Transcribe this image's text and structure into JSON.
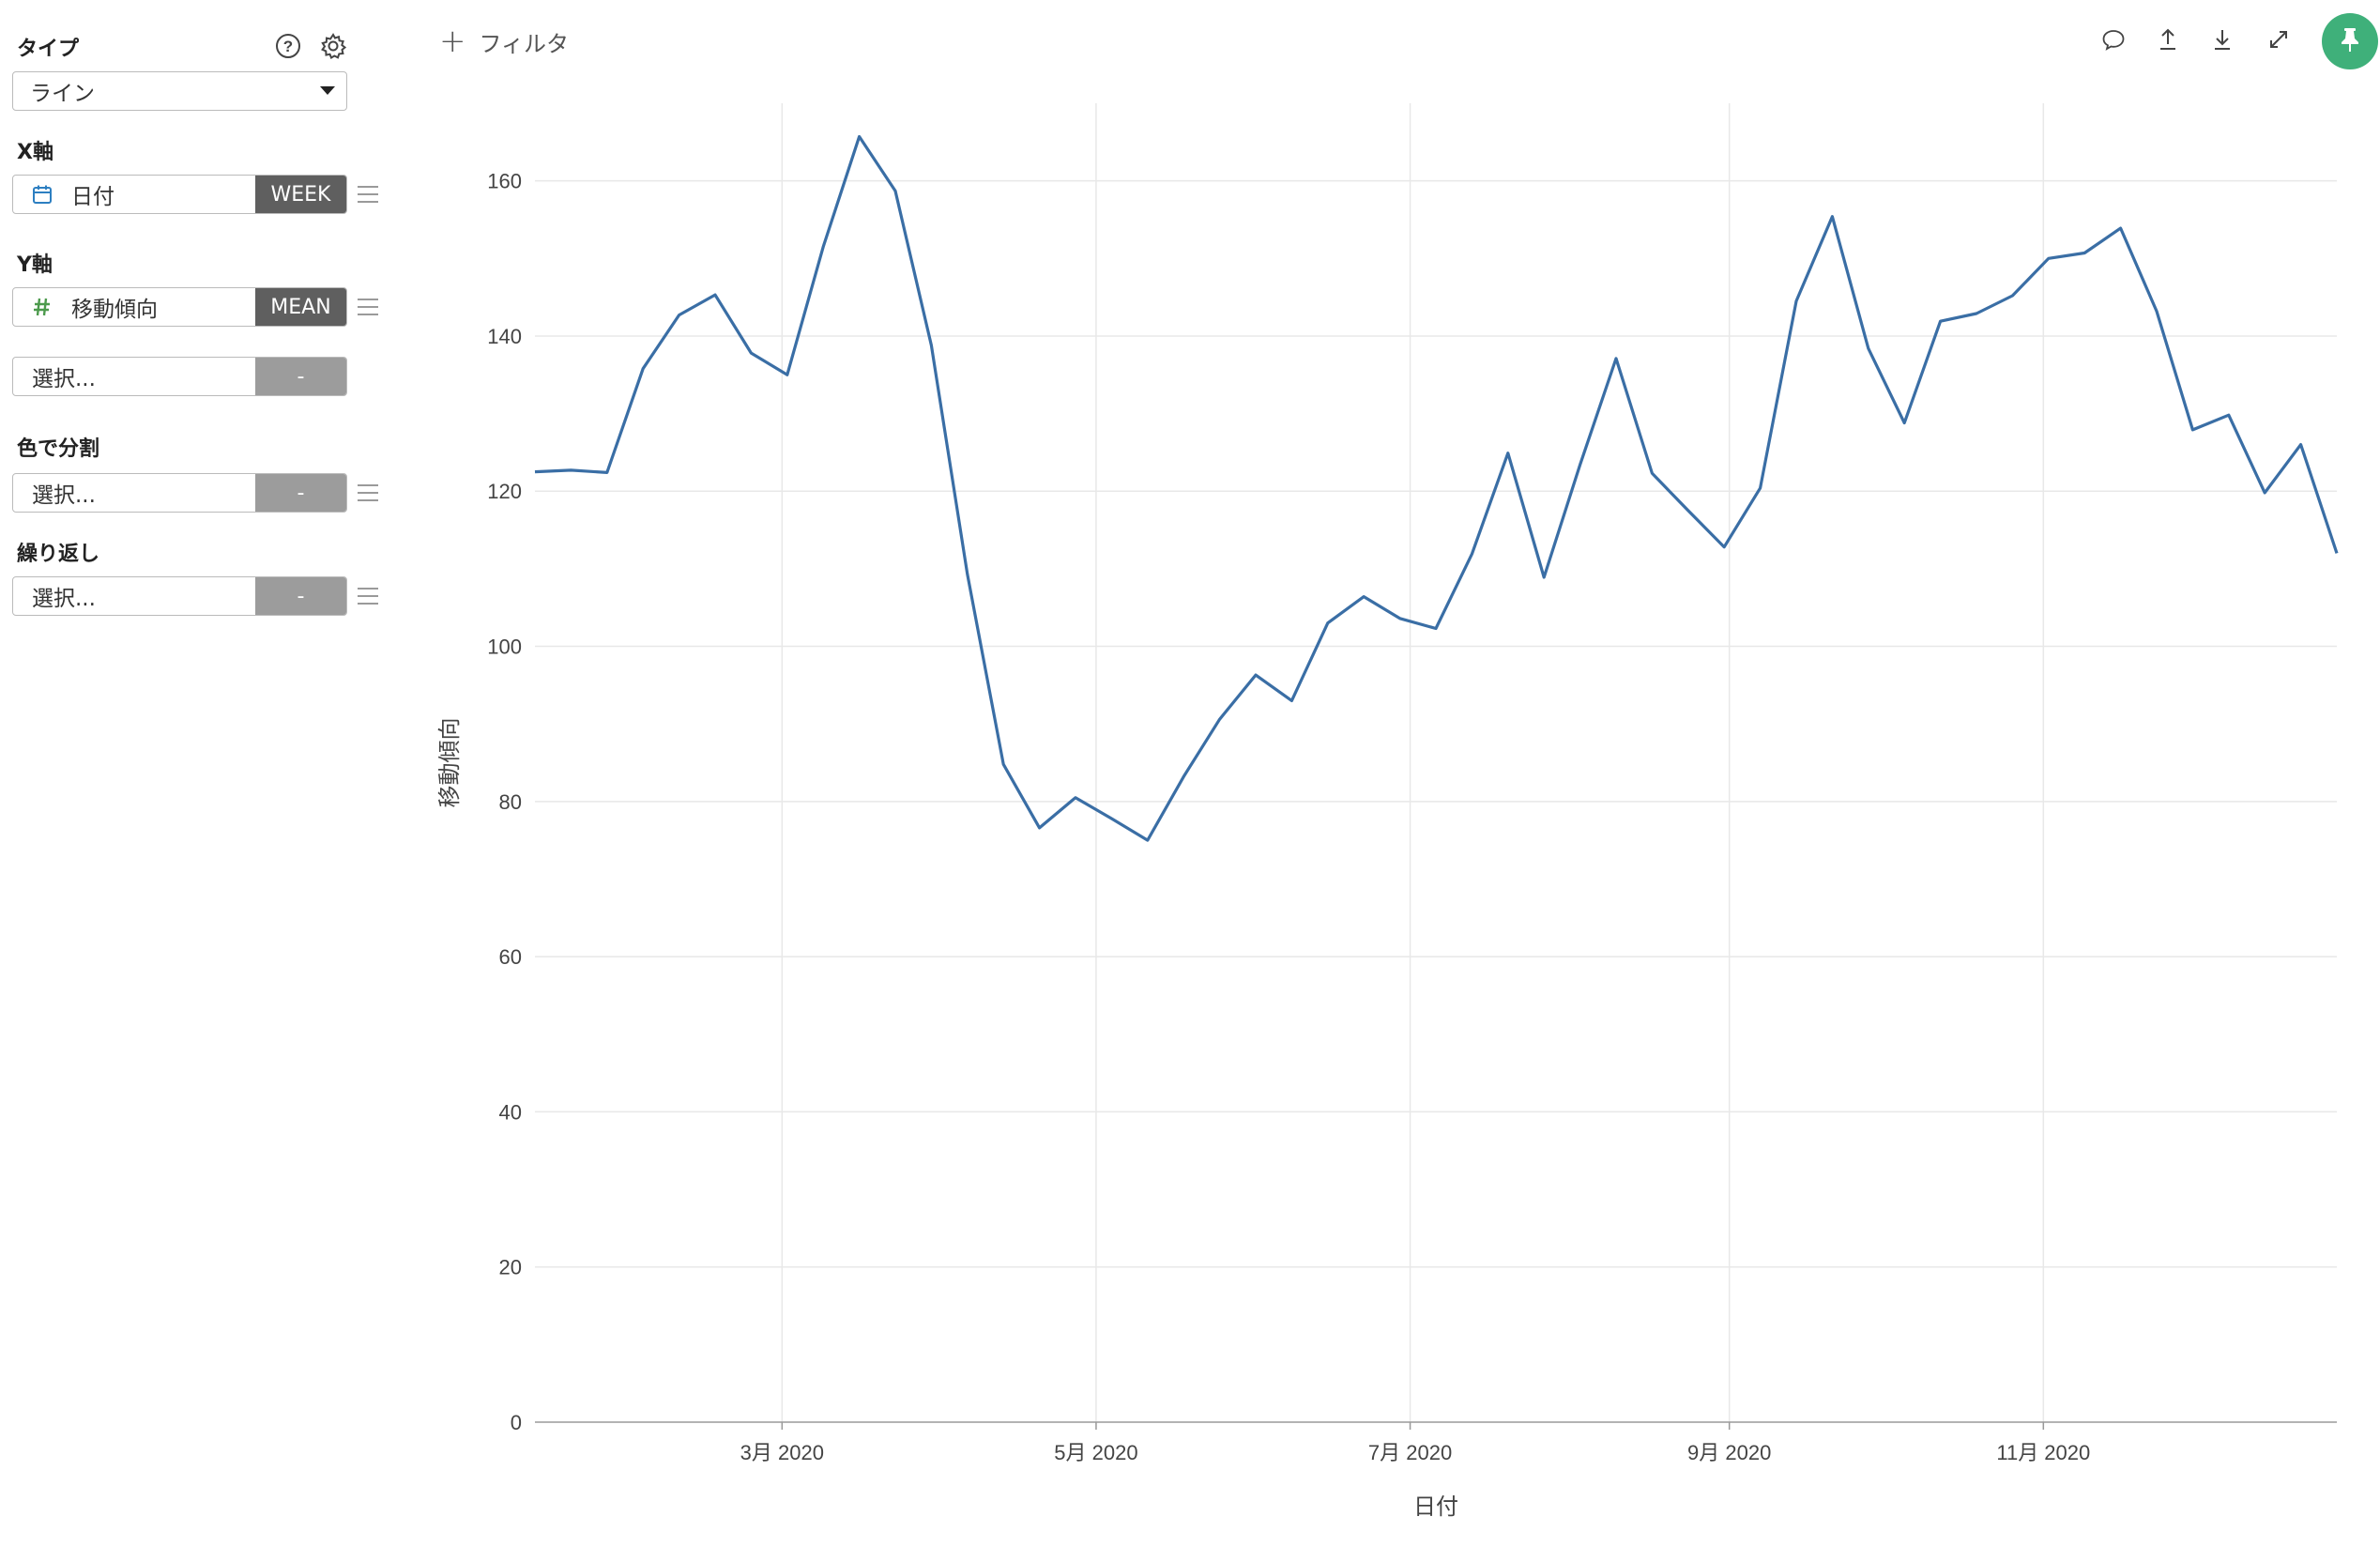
{
  "sidebar": {
    "type_label": "タイプ",
    "type_value": "ライン",
    "x_axis_label": "X軸",
    "x_field": {
      "name": "日付",
      "agg": "WEEK",
      "icon": "calendar-icon"
    },
    "y_axis_label": "Y軸",
    "y_field": {
      "name": "移動傾向",
      "agg": "MEAN",
      "icon": "hash-icon"
    },
    "y_field2": {
      "name": "選択...",
      "agg": "-"
    },
    "color_label": "色で分割",
    "color_field": {
      "name": "選択...",
      "agg": "-"
    },
    "repeat_label": "繰り返し",
    "repeat_field": {
      "name": "選択...",
      "agg": "-"
    }
  },
  "toolbar": {
    "filter_label": "フィルタ",
    "icons": [
      "comment-icon",
      "upload-icon",
      "download-icon",
      "expand-icon",
      "pin-icon"
    ]
  },
  "colors": {
    "line": "#3a6ea5",
    "accent_green": "#3fb07a",
    "tag_dark": "#5f5f5f",
    "tag_empty": "#9c9c9c",
    "grid": "#e8e8e8"
  },
  "chart_data": {
    "type": "line",
    "xlabel": "日付",
    "ylabel": "移動傾向",
    "ylim": [
      0,
      170
    ],
    "yticks": [
      0,
      20,
      40,
      60,
      80,
      100,
      120,
      140,
      160
    ],
    "xticks": [
      {
        "label": "3月 2020",
        "date": "2020-03-01"
      },
      {
        "label": "5月 2020",
        "date": "2020-05-01"
      },
      {
        "label": "7月 2020",
        "date": "2020-07-01"
      },
      {
        "label": "9月 2020",
        "date": "2020-09-01"
      },
      {
        "label": "11月 2020",
        "date": "2020-11-01"
      }
    ],
    "grid": true,
    "series": [
      {
        "x": [
          "2020-01-13",
          "2020-01-20",
          "2020-01-27",
          "2020-02-03",
          "2020-02-10",
          "2020-02-17",
          "2020-02-24",
          "2020-03-02",
          "2020-03-09",
          "2020-03-16",
          "2020-03-23",
          "2020-03-30",
          "2020-04-06",
          "2020-04-13",
          "2020-04-20",
          "2020-04-27",
          "2020-05-04",
          "2020-05-11",
          "2020-05-18",
          "2020-05-25",
          "2020-06-01",
          "2020-06-08",
          "2020-06-15",
          "2020-06-22",
          "2020-06-29",
          "2020-07-06",
          "2020-07-13",
          "2020-07-20",
          "2020-07-27",
          "2020-08-03",
          "2020-08-10",
          "2020-08-17",
          "2020-08-24",
          "2020-08-31",
          "2020-09-07",
          "2020-09-14",
          "2020-09-21",
          "2020-09-28",
          "2020-10-05",
          "2020-10-12",
          "2020-10-19",
          "2020-10-26",
          "2020-11-02",
          "2020-11-09",
          "2020-11-16",
          "2020-11-23",
          "2020-11-30",
          "2020-12-07",
          "2020-12-14",
          "2020-12-21",
          "2020-12-28"
        ],
        "values": [
          122.5,
          122.7,
          122.4,
          135.8,
          142.7,
          145.3,
          137.8,
          135.0,
          151.5,
          165.7,
          158.7,
          138.8,
          109.3,
          84.8,
          76.6,
          80.5,
          77.8,
          75.0,
          83.2,
          90.6,
          96.3,
          93.0,
          103.0,
          106.4,
          103.6,
          102.3,
          111.9,
          124.9,
          108.9,
          123.4,
          137.1,
          122.3,
          117.5,
          112.8,
          120.4,
          144.5,
          155.4,
          138.4,
          128.8,
          141.9,
          142.9,
          145.2,
          150.0,
          150.7,
          153.9,
          143.2,
          127.9,
          129.8,
          119.8,
          126.0,
          112.0
        ]
      }
    ]
  }
}
